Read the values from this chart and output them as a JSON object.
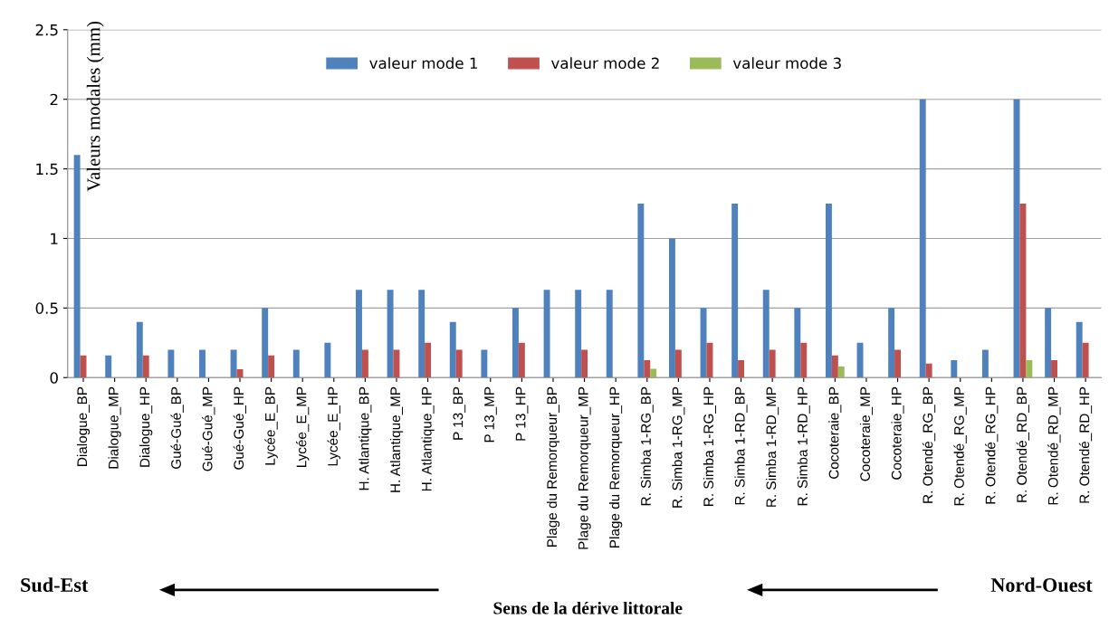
{
  "chart_data": {
    "type": "bar",
    "ylabel": "Valeurs modales (mm)",
    "categories": [
      "Dialogue_BP",
      "Dialogue_MP",
      "Dialogue_HP",
      "Gué-Gué_BP",
      "Gué-Gué_MP",
      "Gué-Gué_HP",
      "Lycée_E_BP",
      "Lycée_E_MP",
      "Lycée_E_HP",
      "H. Atlantique_BP",
      "H. Atlantique_MP",
      "H. Atlantique_HP",
      "P 13_BP",
      "P 13_MP",
      "P 13_HP",
      "Plage du Remorqueur_BP",
      "Plage du Remorqueur_MP",
      "Plage du Remorqueur_HP",
      "R. Simba 1-RG_BP",
      "R. Simba 1-RG_MP",
      "R. Simba 1-RG_HP",
      "R. Simba 1-RD_BP",
      "R. Simba 1-RD_MP",
      "R. Simba 1-RD_HP",
      "Cocoteraie_BP",
      "Cocoteraie_MP",
      "Cocoteraie_HP",
      "R. Otendé_RG_BP",
      "R. Otendé_RG_MP",
      "R. Otendé_RG_HP",
      "R. Otendé_RD_BP",
      "R. Otendé_RD_MP",
      "R. Otendé_RD_HP"
    ],
    "series": [
      {
        "name": "valeur mode 1",
        "color": "#4f81bd",
        "values": [
          1.6,
          0.16,
          0.4,
          0.2,
          0.2,
          0.2,
          0.5,
          0.2,
          0.25,
          0.63,
          0.63,
          0.63,
          0.4,
          0.2,
          0.5,
          0.63,
          0.63,
          0.63,
          1.25,
          1.0,
          0.5,
          1.25,
          0.63,
          0.5,
          1.25,
          0.25,
          0.5,
          2.0,
          0.125,
          0.2,
          2.0,
          0.5,
          0.4
        ]
      },
      {
        "name": "valeur mode 2",
        "color": "#c0504d",
        "values": [
          0.16,
          null,
          0.16,
          null,
          null,
          0.06,
          0.16,
          null,
          null,
          0.2,
          0.2,
          0.25,
          0.2,
          null,
          0.25,
          null,
          0.2,
          null,
          0.125,
          0.2,
          0.25,
          0.125,
          0.2,
          0.25,
          0.16,
          null,
          0.2,
          0.1,
          null,
          null,
          1.25,
          0.125,
          0.25
        ]
      },
      {
        "name": "valeur mode 3",
        "color": "#9bbb59",
        "values": [
          null,
          null,
          null,
          null,
          null,
          null,
          null,
          null,
          null,
          null,
          null,
          null,
          null,
          null,
          null,
          null,
          null,
          null,
          0.063,
          null,
          null,
          null,
          null,
          null,
          0.08,
          null,
          null,
          null,
          null,
          null,
          0.125,
          null,
          null
        ]
      }
    ],
    "ylim": [
      0,
      2.5
    ],
    "yticks": [
      0,
      0.5,
      1,
      1.5,
      2,
      2.5
    ],
    "grid": "y",
    "legend": "top",
    "annotations": [
      "Sud-Est",
      "Nord-Ouest",
      "Sens de la dérive littorale"
    ]
  }
}
